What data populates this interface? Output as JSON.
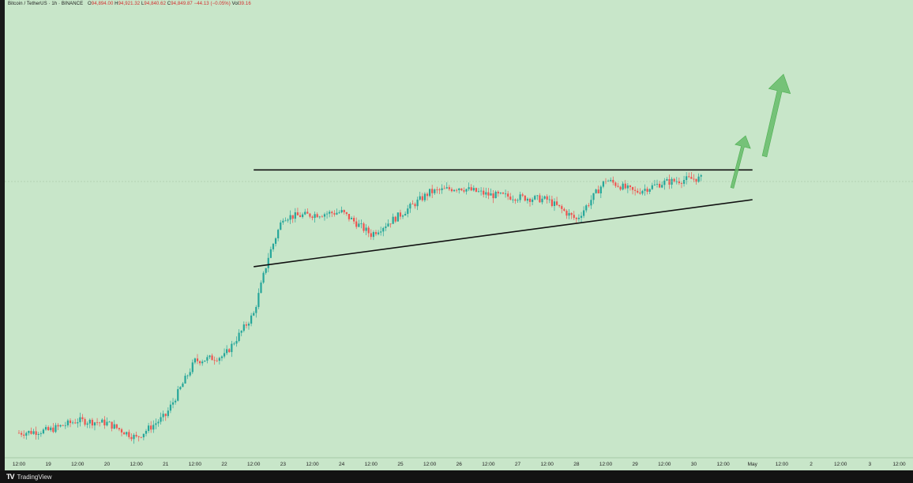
{
  "header": {
    "symbol": "Bitcoin / TetherUS · 1h · BINANCE",
    "open_label": "O",
    "open_value": "94,894.00",
    "high_label": "H",
    "high_value": "94,921.32",
    "low_label": "L",
    "low_value": "94,840.62",
    "close_label": "C",
    "close_value": "94,849.87",
    "change_value": "−44.13 (−0.05%)",
    "vol_label": "Vol",
    "vol_value": "39.16"
  },
  "footer": {
    "brand": "TradingView"
  },
  "colors": {
    "background": "#c8e6c9",
    "up_candle": "#26a69a",
    "down_candle": "#ef5350",
    "trendline": "#111111",
    "arrow": "#66bb6a"
  },
  "chart_data": {
    "type": "candlestick",
    "title": "Bitcoin / TetherUS · 1h · BINANCE",
    "x_tick_labels": [
      "12:00",
      "19",
      "12:00",
      "20",
      "12:00",
      "21",
      "12:00",
      "22",
      "12:00",
      "23",
      "12:00",
      "24",
      "12:00",
      "25",
      "12:00",
      "26",
      "12:00",
      "27",
      "12:00",
      "28",
      "12:00",
      "29",
      "12:00",
      "30",
      "12:00",
      "May",
      "12:00",
      "2",
      "12:00",
      "3",
      "12:00"
    ],
    "y_axis_visible": false,
    "grid": false,
    "price_path_approx": [
      {
        "date": "Apr 18 12:00",
        "price": 84600
      },
      {
        "date": "Apr 19 00:00",
        "price": 84700
      },
      {
        "date": "Apr 19 12:00",
        "price": 85100
      },
      {
        "date": "Apr 20 00:00",
        "price": 85000
      },
      {
        "date": "Apr 20 12:00",
        "price": 84400
      },
      {
        "date": "Apr 21 00:00",
        "price": 85300
      },
      {
        "date": "Apr 21 12:00",
        "price": 87500
      },
      {
        "date": "Apr 22 00:00",
        "price": 87700
      },
      {
        "date": "Apr 22 12:00",
        "price": 89400
      },
      {
        "date": "Apr 22 18:00",
        "price": 91700
      },
      {
        "date": "Apr 23 00:00",
        "price": 93300
      },
      {
        "date": "Apr 23 12:00",
        "price": 93400
      },
      {
        "date": "Apr 24 00:00",
        "price": 93500
      },
      {
        "date": "Apr 24 12:00",
        "price": 92600
      },
      {
        "date": "Apr 25 00:00",
        "price": 93400
      },
      {
        "date": "Apr 25 12:00",
        "price": 94300
      },
      {
        "date": "Apr 26 00:00",
        "price": 94500
      },
      {
        "date": "Apr 26 12:00",
        "price": 94200
      },
      {
        "date": "Apr 27 00:00",
        "price": 94100
      },
      {
        "date": "Apr 27 12:00",
        "price": 94000
      },
      {
        "date": "Apr 28 00:00",
        "price": 93200
      },
      {
        "date": "Apr 28 12:00",
        "price": 94800
      },
      {
        "date": "Apr 29 00:00",
        "price": 94300
      },
      {
        "date": "Apr 29 12:00",
        "price": 94700
      },
      {
        "date": "Apr 30 00:00",
        "price": 94850
      }
    ],
    "annotations": [
      {
        "kind": "trendline",
        "name": "resistance",
        "from": {
          "date": "Apr 22 12:00",
          "price": 95200
        },
        "to": {
          "date": "May 1 00:00",
          "price": 95200
        }
      },
      {
        "kind": "trendline",
        "name": "rising-support",
        "from": {
          "date": "Apr 22 12:00",
          "price": 91300
        },
        "to": {
          "date": "May 1 00:00",
          "price": 94000
        }
      },
      {
        "kind": "arrow",
        "direction": "up",
        "name": "breakout-arrow-small"
      },
      {
        "kind": "arrow",
        "direction": "up",
        "name": "breakout-arrow-large"
      }
    ]
  }
}
